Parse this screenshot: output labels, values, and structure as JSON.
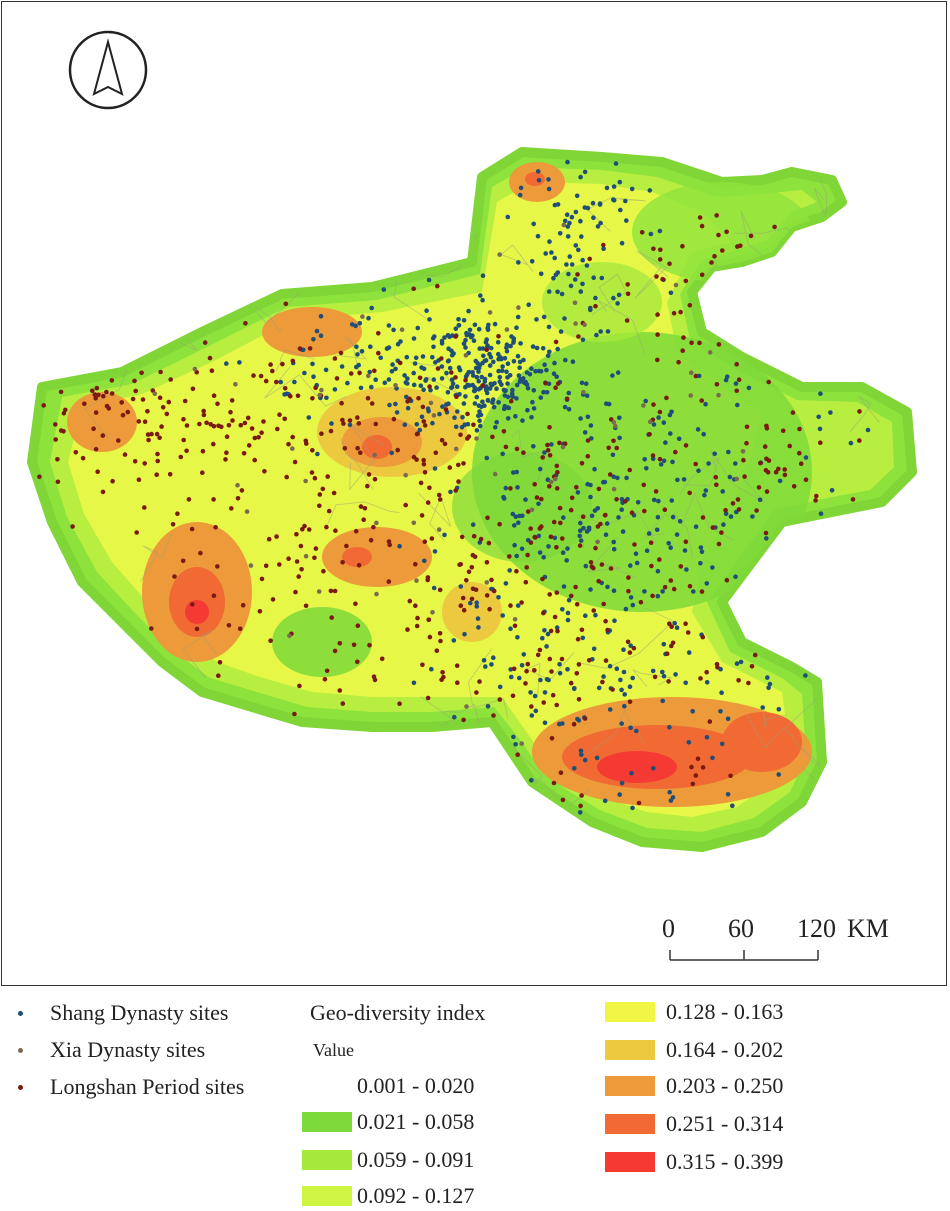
{
  "scale_bar": {
    "ticks": [
      "0",
      "60",
      "120"
    ],
    "unit": "KM"
  },
  "north_arrow": {
    "icon": "north-arrow-icon"
  },
  "points_legend": [
    {
      "label": "Shang Dynasty sites",
      "color": "#1f4e79"
    },
    {
      "label": "Xia Dynasty sites",
      "color": "#7a6a50"
    },
    {
      "label": "Longshan Period sites",
      "color": "#7a1a12"
    }
  ],
  "index_legend": {
    "title": "Geo-diversity index",
    "subtitle": "Value",
    "classes": [
      {
        "label": "0.001 - 0.020",
        "color": "#ffffff"
      },
      {
        "label": "0.021 - 0.058",
        "color": "#7ed93a"
      },
      {
        "label": "0.059 - 0.091",
        "color": "#a6e83c"
      },
      {
        "label": "0.092 - 0.127",
        "color": "#cdf542"
      },
      {
        "label": "0.128 - 0.163",
        "color": "#f1f544"
      },
      {
        "label": "0.164 - 0.202",
        "color": "#ecc93f"
      },
      {
        "label": "0.203 - 0.250",
        "color": "#ec9a3a"
      },
      {
        "label": "0.251 - 0.314",
        "color": "#f16a34"
      },
      {
        "label": "0.315 - 0.399",
        "color": "#f43a32"
      }
    ]
  }
}
